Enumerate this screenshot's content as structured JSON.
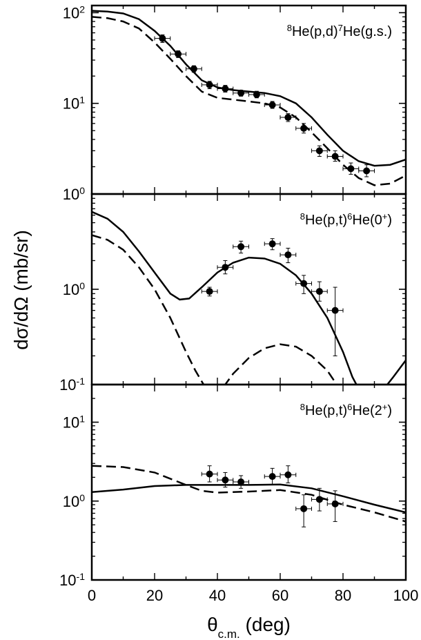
{
  "chart_data": [
    {
      "type": "scatter",
      "annotation": {
        "pre": "8",
        "mid": "He(p,d)",
        "sup": "7",
        "post": "He(g.s.)"
      },
      "ylim": [
        1,
        120
      ],
      "yscale": "log",
      "yticks": [
        {
          "v": 100,
          "base": "10",
          "exp": "2"
        },
        {
          "v": 10,
          "base": "10",
          "exp": "1"
        },
        {
          "v": 1,
          "base": "10",
          "exp": "0"
        }
      ],
      "data": [
        {
          "x": 22.5,
          "y": 52.0,
          "lo": 47.0,
          "hi": 57.0
        },
        {
          "x": 27.5,
          "y": 35.0,
          "lo": 32.0,
          "hi": 38.0
        },
        {
          "x": 32.5,
          "y": 24.0,
          "lo": 22.0,
          "hi": 26.0
        },
        {
          "x": 37.5,
          "y": 16.0,
          "lo": 14.5,
          "hi": 17.5
        },
        {
          "x": 42.5,
          "y": 14.5,
          "lo": 13.3,
          "hi": 15.8
        },
        {
          "x": 47.5,
          "y": 13.0,
          "lo": 12.0,
          "hi": 14.0
        },
        {
          "x": 52.5,
          "y": 12.5,
          "lo": 11.5,
          "hi": 13.6
        },
        {
          "x": 57.5,
          "y": 9.6,
          "lo": 8.8,
          "hi": 10.5
        },
        {
          "x": 62.5,
          "y": 7.0,
          "lo": 6.3,
          "hi": 7.7
        },
        {
          "x": 67.5,
          "y": 5.3,
          "lo": 4.7,
          "hi": 6.0
        },
        {
          "x": 72.5,
          "y": 3.0,
          "lo": 2.6,
          "hi": 3.4
        },
        {
          "x": 77.5,
          "y": 2.6,
          "lo": 2.3,
          "hi": 3.0
        },
        {
          "x": 82.5,
          "y": 1.9,
          "lo": 1.65,
          "hi": 2.2
        },
        {
          "x": 87.5,
          "y": 1.8,
          "lo": 1.55,
          "hi": 2.1
        }
      ],
      "solid": [
        [
          0,
          105
        ],
        [
          5,
          103
        ],
        [
          10,
          98
        ],
        [
          15,
          85
        ],
        [
          20,
          63
        ],
        [
          25,
          43
        ],
        [
          30,
          27
        ],
        [
          35,
          18
        ],
        [
          40,
          15
        ],
        [
          45,
          14
        ],
        [
          50,
          13.5
        ],
        [
          55,
          13
        ],
        [
          60,
          12
        ],
        [
          65,
          10
        ],
        [
          70,
          7
        ],
        [
          75,
          4.5
        ],
        [
          80,
          3
        ],
        [
          85,
          2.3
        ],
        [
          90,
          2.05
        ],
        [
          95,
          2.1
        ],
        [
          100,
          2.4
        ]
      ],
      "dashed": [
        [
          0,
          90
        ],
        [
          5,
          87
        ],
        [
          10,
          80
        ],
        [
          15,
          67
        ],
        [
          20,
          47
        ],
        [
          25,
          31
        ],
        [
          30,
          20
        ],
        [
          35,
          13.5
        ],
        [
          40,
          11.5
        ],
        [
          45,
          11
        ],
        [
          50,
          10.5
        ],
        [
          55,
          10
        ],
        [
          60,
          9
        ],
        [
          65,
          7
        ],
        [
          70,
          4.8
        ],
        [
          75,
          3.2
        ],
        [
          80,
          2.1
        ],
        [
          85,
          1.5
        ],
        [
          90,
          1.25
        ],
        [
          95,
          1.3
        ],
        [
          100,
          1.6
        ]
      ]
    },
    {
      "type": "scatter",
      "annotation": {
        "pre": "8",
        "mid": "He(p,t)",
        "sup": "6",
        "post": "He(0",
        "post_sup": "+",
        "end": ")"
      },
      "ylim": [
        0.1,
        10
      ],
      "yscale": "log",
      "yticks": [
        {
          "v": 1,
          "base": "10",
          "exp": "0"
        },
        {
          "v": 0.1,
          "base": "10",
          "exp": "-1"
        }
      ],
      "data": [
        {
          "x": 37.5,
          "y": 0.95,
          "lo": 0.85,
          "hi": 1.05
        },
        {
          "x": 42.5,
          "y": 1.7,
          "lo": 1.45,
          "hi": 2.0
        },
        {
          "x": 47.5,
          "y": 2.8,
          "lo": 2.4,
          "hi": 3.2
        },
        {
          "x": 57.5,
          "y": 3.0,
          "lo": 2.6,
          "hi": 3.4
        },
        {
          "x": 62.5,
          "y": 2.3,
          "lo": 1.9,
          "hi": 2.7
        },
        {
          "x": 67.5,
          "y": 1.15,
          "lo": 0.9,
          "hi": 1.4
        },
        {
          "x": 72.5,
          "y": 0.95,
          "lo": 0.75,
          "hi": 1.2
        },
        {
          "x": 77.5,
          "y": 0.6,
          "lo": 0.2,
          "hi": 1.05
        }
      ],
      "solid": [
        [
          0,
          6.5
        ],
        [
          5,
          5.5
        ],
        [
          10,
          4.0
        ],
        [
          15,
          2.5
        ],
        [
          20,
          1.5
        ],
        [
          25,
          0.9
        ],
        [
          28,
          0.78
        ],
        [
          31,
          0.8
        ],
        [
          35,
          1.05
        ],
        [
          40,
          1.5
        ],
        [
          45,
          1.9
        ],
        [
          50,
          2.15
        ],
        [
          55,
          2.1
        ],
        [
          60,
          1.85
        ],
        [
          65,
          1.4
        ],
        [
          70,
          0.9
        ],
        [
          75,
          0.5
        ],
        [
          80,
          0.22
        ],
        [
          83,
          0.12
        ],
        [
          85,
          0.09
        ]
      ],
      "solid2": [
        [
          93,
          0.09
        ],
        [
          96,
          0.12
        ],
        [
          100,
          0.18
        ]
      ],
      "dashed": [
        [
          0,
          3.7
        ],
        [
          5,
          3.3
        ],
        [
          10,
          2.6
        ],
        [
          15,
          1.7
        ],
        [
          20,
          1.0
        ],
        [
          25,
          0.5
        ],
        [
          30,
          0.22
        ],
        [
          33,
          0.14
        ],
        [
          36,
          0.095
        ]
      ],
      "dashed2": [
        [
          42,
          0.095
        ],
        [
          45,
          0.13
        ],
        [
          50,
          0.19
        ],
        [
          55,
          0.24
        ],
        [
          60,
          0.265
        ],
        [
          65,
          0.25
        ],
        [
          70,
          0.2
        ],
        [
          75,
          0.14
        ],
        [
          78,
          0.1
        ],
        [
          80,
          0.085
        ]
      ]
    },
    {
      "type": "scatter",
      "annotation": {
        "pre": "8",
        "mid": "He(p,t)",
        "sup": "6",
        "post": "He(2",
        "post_sup": "+",
        "end": ")"
      },
      "ylim": [
        0.1,
        30
      ],
      "yscale": "log",
      "yticks": [
        {
          "v": 10,
          "base": "10",
          "exp": "1"
        },
        {
          "v": 1,
          "base": "10",
          "exp": "0"
        },
        {
          "v": 0.1,
          "base": "10",
          "exp": "-1"
        }
      ],
      "xticks": [
        0,
        20,
        40,
        60,
        80,
        100
      ],
      "xlabel": {
        "main": "θ",
        "sub": "c.m.",
        "rest": " (deg)"
      },
      "data": [
        {
          "x": 37.5,
          "y": 2.2,
          "lo": 1.75,
          "hi": 2.8
        },
        {
          "x": 42.5,
          "y": 1.85,
          "lo": 1.5,
          "hi": 2.3
        },
        {
          "x": 47.5,
          "y": 1.75,
          "lo": 1.45,
          "hi": 2.1
        },
        {
          "x": 57.5,
          "y": 2.05,
          "lo": 1.6,
          "hi": 2.6
        },
        {
          "x": 62.5,
          "y": 2.15,
          "lo": 1.7,
          "hi": 2.8
        },
        {
          "x": 67.5,
          "y": 0.8,
          "lo": 0.47,
          "hi": 1.2
        },
        {
          "x": 72.5,
          "y": 1.05,
          "lo": 0.75,
          "hi": 1.45
        },
        {
          "x": 77.5,
          "y": 0.92,
          "lo": 0.55,
          "hi": 1.35
        }
      ],
      "solid": [
        [
          0,
          1.3
        ],
        [
          10,
          1.4
        ],
        [
          20,
          1.55
        ],
        [
          30,
          1.6
        ],
        [
          40,
          1.6
        ],
        [
          50,
          1.6
        ],
        [
          60,
          1.62
        ],
        [
          70,
          1.45
        ],
        [
          80,
          1.15
        ],
        [
          90,
          0.9
        ],
        [
          100,
          0.72
        ]
      ],
      "dashed": [
        [
          0,
          2.8
        ],
        [
          10,
          2.7
        ],
        [
          20,
          2.3
        ],
        [
          30,
          1.6
        ],
        [
          35,
          1.35
        ],
        [
          40,
          1.28
        ],
        [
          50,
          1.32
        ],
        [
          60,
          1.38
        ],
        [
          70,
          1.2
        ],
        [
          80,
          0.9
        ],
        [
          90,
          0.72
        ],
        [
          100,
          0.55
        ]
      ]
    }
  ],
  "ylabel": "dσ/dΩ (mb/sr)",
  "xlim": [
    0,
    100
  ]
}
